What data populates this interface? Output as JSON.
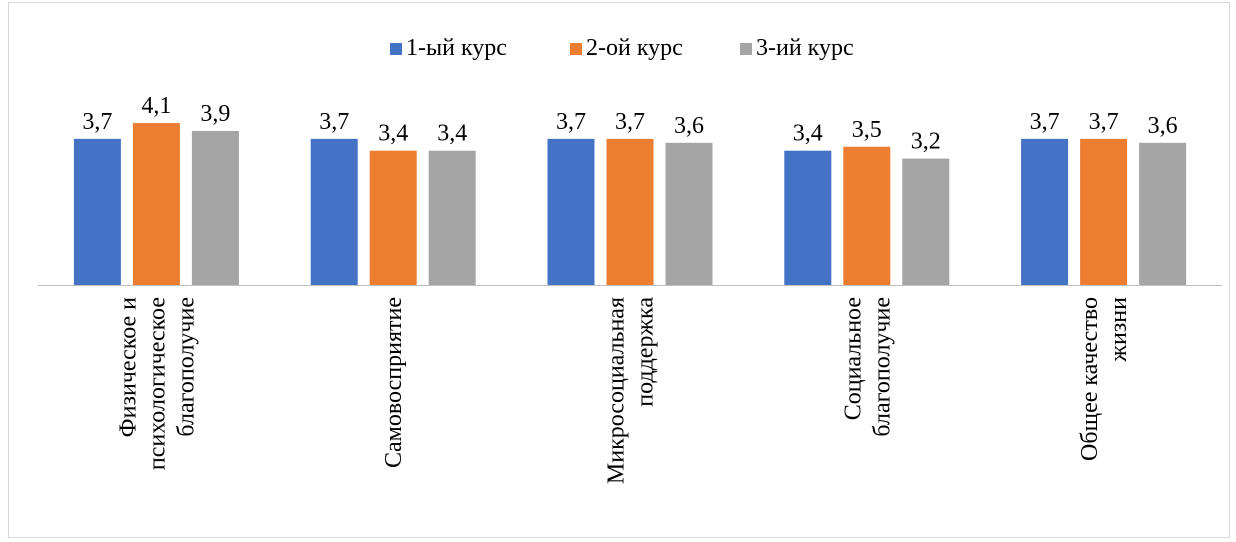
{
  "chart_data": {
    "type": "bar",
    "categories": [
      [
        "Физическое и",
        "психологическое",
        "благополучие"
      ],
      [
        "Самовосприятие"
      ],
      [
        "Микросоциальная",
        "поддержка"
      ],
      [
        "Социальное",
        "благополучие"
      ],
      [
        "Общее качество",
        "жизни"
      ]
    ],
    "series": [
      {
        "name": "1-ый курс",
        "color": "#4472C4",
        "values": [
          3.7,
          3.7,
          3.7,
          3.4,
          3.7
        ],
        "labels": [
          "3,7",
          "3,7",
          "3,7",
          "3,4",
          "3,7"
        ]
      },
      {
        "name": "2-ой курс",
        "color": "#ED7D31",
        "values": [
          4.1,
          3.4,
          3.7,
          3.5,
          3.7
        ],
        "labels": [
          "4,1",
          "3,4",
          "3,7",
          "3,5",
          "3,7"
        ]
      },
      {
        "name": "3-ий курс",
        "color": "#A5A5A5",
        "values": [
          3.9,
          3.4,
          3.6,
          3.2,
          3.6
        ],
        "labels": [
          "3,9",
          "3,4",
          "3,6",
          "3,2",
          "3,6"
        ]
      }
    ],
    "ylim": [
      0,
      5
    ],
    "grid": false,
    "legend_position": "top"
  }
}
